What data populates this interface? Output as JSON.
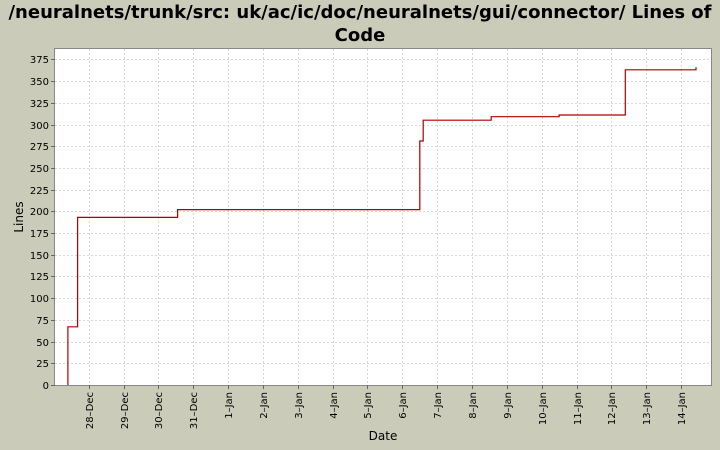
{
  "chart_data": {
    "type": "line",
    "title": "/neuralnets/trunk/src: uk/ac/ic/doc/neuralnets/gui/connector/ Lines of Code",
    "xlabel": "Date",
    "ylabel": "Lines",
    "ylim": [
      0,
      387
    ],
    "xlim": [
      -0.97,
      17.86
    ],
    "grid": true,
    "y_ticks": [
      0,
      25,
      50,
      75,
      100,
      125,
      150,
      175,
      200,
      225,
      250,
      275,
      300,
      325,
      350,
      375
    ],
    "x_ticks": [
      {
        "pos": 0,
        "label": "28–Dec"
      },
      {
        "pos": 1,
        "label": "29–Dec"
      },
      {
        "pos": 2,
        "label": "30–Dec"
      },
      {
        "pos": 3,
        "label": "31–Dec"
      },
      {
        "pos": 4,
        "label": "1–Jan"
      },
      {
        "pos": 5,
        "label": "2–Jan"
      },
      {
        "pos": 6,
        "label": "3–Jan"
      },
      {
        "pos": 7,
        "label": "4–Jan"
      },
      {
        "pos": 8,
        "label": "5–Jan"
      },
      {
        "pos": 9,
        "label": "6–Jan"
      },
      {
        "pos": 10,
        "label": "7–Jan"
      },
      {
        "pos": 11,
        "label": "8–Jan"
      },
      {
        "pos": 12,
        "label": "9–Jan"
      },
      {
        "pos": 13,
        "label": "10–Jan"
      },
      {
        "pos": 14,
        "label": "11–Jan"
      },
      {
        "pos": 15,
        "label": "12–Jan"
      },
      {
        "pos": 16,
        "label": "13–Jan"
      },
      {
        "pos": 17,
        "label": "14–Jan"
      }
    ],
    "series": [
      {
        "color": "#aa0000",
        "step": true,
        "points": [
          [
            -0.6,
            0
          ],
          [
            -0.6,
            67
          ],
          [
            -0.32,
            67
          ],
          [
            -0.32,
            193
          ],
          [
            2.55,
            193
          ],
          [
            2.55,
            202
          ],
          [
            9.5,
            202
          ],
          [
            9.5,
            281
          ],
          [
            9.6,
            281
          ],
          [
            9.6,
            305
          ],
          [
            11.55,
            305
          ],
          [
            11.55,
            309
          ],
          [
            13.5,
            309
          ],
          [
            13.5,
            311
          ],
          [
            15.4,
            311
          ],
          [
            15.4,
            363
          ],
          [
            17.43,
            363
          ],
          [
            17.43,
            366
          ]
        ]
      }
    ]
  }
}
